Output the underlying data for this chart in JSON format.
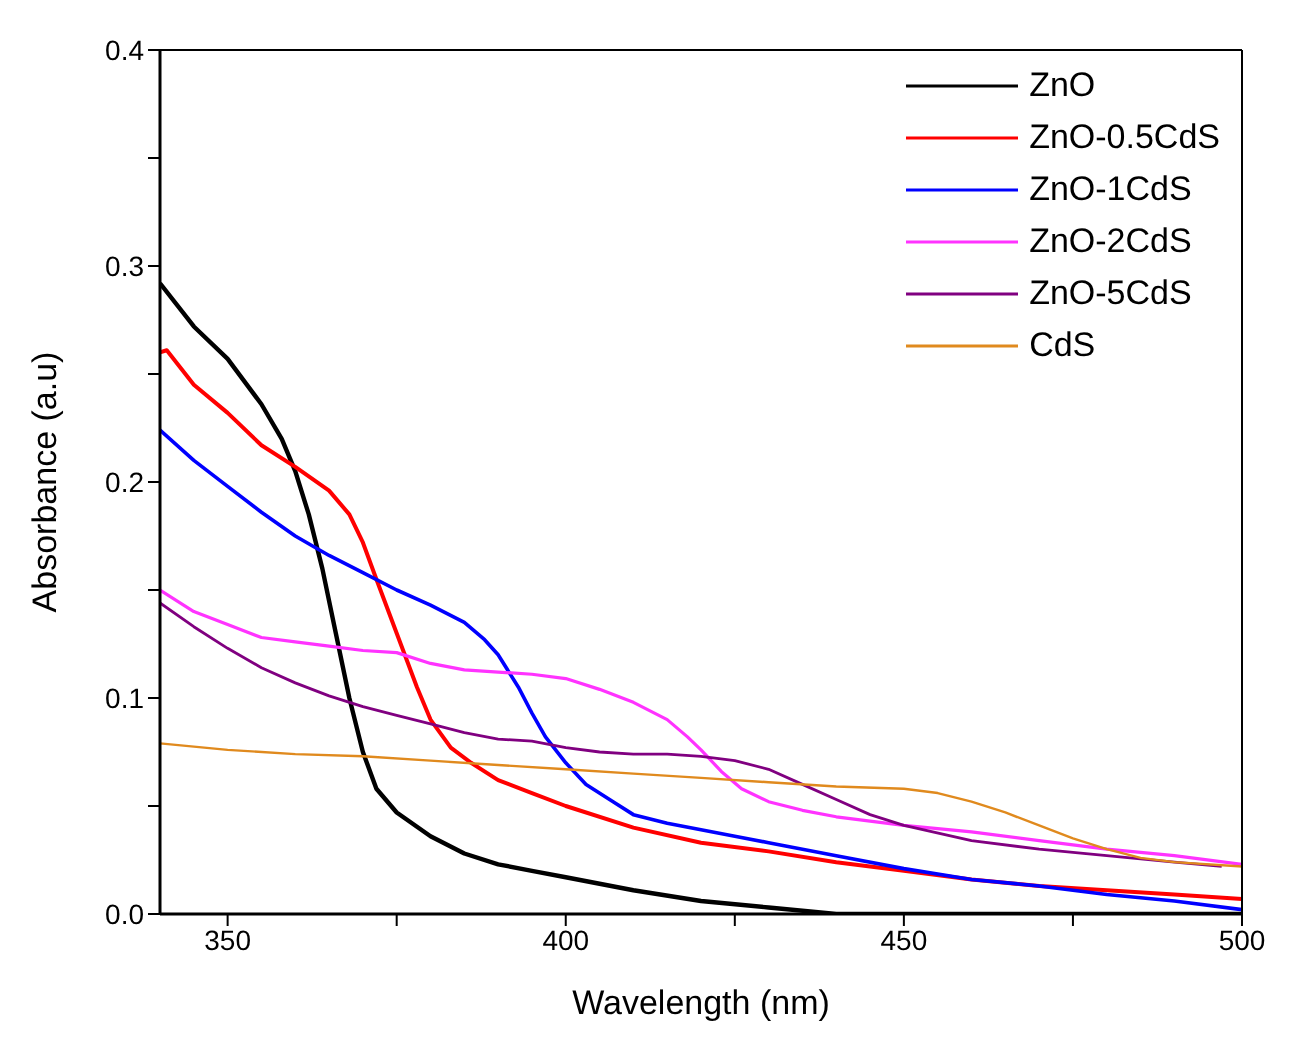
{
  "chart_data": {
    "type": "line",
    "xlabel": "Wavelength (nm)",
    "ylabel": "Absorbance (a.u)",
    "xlim": [
      340,
      500
    ],
    "ylim": [
      0,
      0.4
    ],
    "xticks": [
      350,
      {
        "value": 375,
        "label": null
      },
      400,
      {
        "value": 425,
        "label": null
      },
      450,
      {
        "value": 475,
        "label": null
      },
      500
    ],
    "yticks": [
      {
        "value": 0,
        "label": "0.0"
      },
      {
        "value": 0.05,
        "label": null
      },
      0.1,
      {
        "value": 0.15,
        "label": null
      },
      0.2,
      {
        "value": 0.25,
        "label": null
      },
      0.3,
      {
        "value": 0.35,
        "label": null
      },
      0.4
    ],
    "legend": "top right",
    "marker": "none",
    "line_style": "solid",
    "series": [
      {
        "name": "ZnO",
        "color": "#000000",
        "x": [
          340,
          345,
          350,
          355,
          358,
          360,
          362,
          364,
          366,
          368,
          370,
          372,
          375,
          380,
          385,
          390,
          395,
          400,
          410,
          420,
          430,
          440,
          450,
          500
        ],
        "values": [
          0.292,
          0.272,
          0.257,
          0.236,
          0.22,
          0.205,
          0.185,
          0.16,
          0.13,
          0.1,
          0.075,
          0.058,
          0.047,
          0.036,
          0.028,
          0.023,
          0.02,
          0.017,
          0.011,
          0.006,
          0.003,
          0.0,
          0.0,
          0.0
        ]
      },
      {
        "name": "ZnO-0.5CdS",
        "color": "#ff0000",
        "x": [
          340,
          341,
          345,
          350,
          355,
          360,
          365,
          368,
          370,
          372,
          375,
          378,
          380,
          383,
          386,
          390,
          395,
          400,
          410,
          420,
          430,
          440,
          450,
          460,
          470,
          480,
          490,
          500
        ],
        "values": [
          0.26,
          0.261,
          0.245,
          0.232,
          0.217,
          0.207,
          0.196,
          0.185,
          0.172,
          0.155,
          0.13,
          0.105,
          0.09,
          0.077,
          0.07,
          0.062,
          0.056,
          0.05,
          0.04,
          0.033,
          0.029,
          0.024,
          0.02,
          0.016,
          0.013,
          0.011,
          0.009,
          0.007
        ]
      },
      {
        "name": "ZnO-1CdS",
        "color": "#0000ff",
        "x": [
          340,
          345,
          350,
          355,
          360,
          365,
          370,
          375,
          380,
          385,
          388,
          390,
          393,
          395,
          397,
          400,
          403,
          407,
          410,
          415,
          420,
          425,
          430,
          440,
          450,
          460,
          470,
          480,
          490,
          500
        ],
        "values": [
          0.224,
          0.21,
          0.198,
          0.186,
          0.175,
          0.166,
          0.158,
          0.15,
          0.143,
          0.135,
          0.127,
          0.12,
          0.105,
          0.093,
          0.082,
          0.07,
          0.06,
          0.052,
          0.046,
          0.042,
          0.039,
          0.036,
          0.033,
          0.027,
          0.021,
          0.016,
          0.013,
          0.009,
          0.006,
          0.002
        ]
      },
      {
        "name": "ZnO-2CdS",
        "color": "#ff33ff",
        "x": [
          340,
          345,
          350,
          355,
          360,
          365,
          370,
          375,
          380,
          385,
          390,
          395,
          400,
          405,
          410,
          415,
          418,
          420,
          423,
          426,
          430,
          435,
          440,
          450,
          460,
          470,
          480,
          490,
          500
        ],
        "values": [
          0.15,
          0.14,
          0.134,
          0.128,
          0.126,
          0.124,
          0.122,
          0.121,
          0.116,
          0.113,
          0.112,
          0.111,
          0.109,
          0.104,
          0.098,
          0.09,
          0.082,
          0.076,
          0.066,
          0.058,
          0.052,
          0.048,
          0.045,
          0.041,
          0.038,
          0.034,
          0.03,
          0.027,
          0.023
        ]
      },
      {
        "name": "ZnO-5CdS",
        "color": "#800080",
        "x": [
          340,
          345,
          350,
          355,
          360,
          365,
          370,
          375,
          380,
          385,
          390,
          395,
          400,
          405,
          410,
          415,
          420,
          425,
          430,
          435,
          440,
          445,
          450,
          460,
          470,
          480,
          490,
          497
        ],
        "values": [
          0.144,
          0.133,
          0.123,
          0.114,
          0.107,
          0.101,
          0.096,
          0.092,
          0.088,
          0.084,
          0.081,
          0.08,
          0.077,
          0.075,
          0.074,
          0.074,
          0.073,
          0.071,
          0.067,
          0.06,
          0.053,
          0.046,
          0.041,
          0.034,
          0.03,
          0.027,
          0.024,
          0.022
        ]
      },
      {
        "name": "CdS",
        "color": "#e08a1e",
        "x": [
          340,
          350,
          360,
          370,
          380,
          390,
          400,
          410,
          420,
          430,
          440,
          450,
          455,
          460,
          465,
          470,
          475,
          480,
          485,
          490,
          500
        ],
        "values": [
          0.079,
          0.076,
          0.074,
          0.073,
          0.071,
          0.069,
          0.067,
          0.065,
          0.063,
          0.061,
          0.059,
          0.058,
          0.056,
          0.052,
          0.047,
          0.041,
          0.035,
          0.03,
          0.026,
          0.024,
          0.022
        ]
      }
    ]
  }
}
